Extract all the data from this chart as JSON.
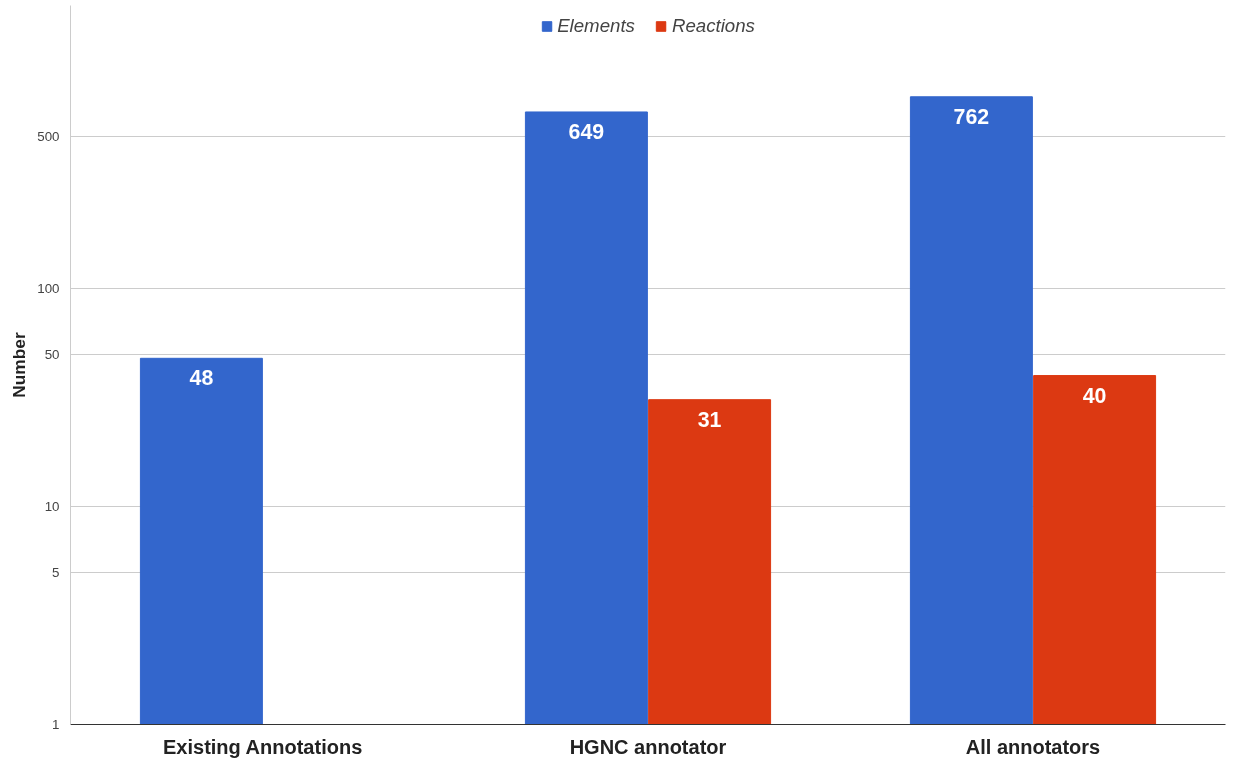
{
  "chart_data": {
    "type": "bar",
    "ylabel": "Number",
    "categories": [
      "Existing Annotations",
      "HGNC annotator",
      "All annotators"
    ],
    "series": [
      {
        "name": "Elements",
        "color": "#3366cc",
        "values": [
          48,
          649,
          762
        ]
      },
      {
        "name": "Reactions",
        "color": "#dc3912",
        "values": [
          null,
          31,
          40
        ]
      }
    ],
    "log": true,
    "ylim": [
      1,
      2000
    ],
    "yticks": [
      1,
      5,
      10,
      50,
      100,
      500
    ],
    "grid": "y",
    "legend": "top",
    "data_labels": true
  }
}
